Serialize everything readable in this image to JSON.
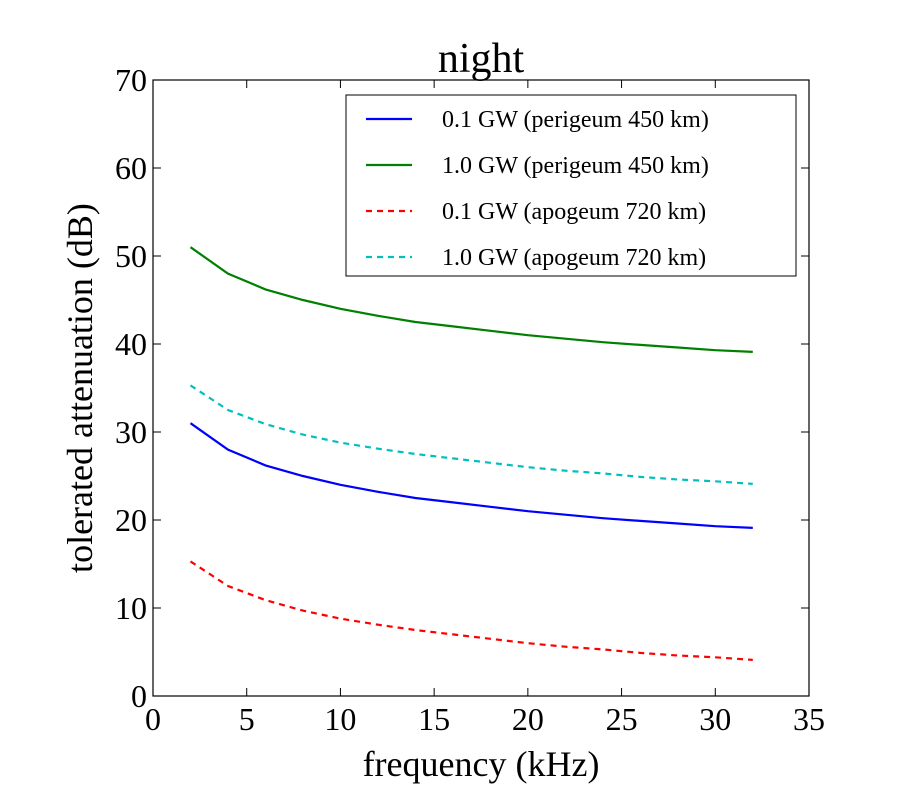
{
  "chart_data": {
    "type": "line",
    "title": "night",
    "xlabel": "frequency (kHz)",
    "ylabel": "tolerated attenuation (dB)",
    "xlim": [
      0,
      35
    ],
    "ylim": [
      0,
      70
    ],
    "xticks": [
      0,
      5,
      10,
      15,
      20,
      25,
      30,
      35
    ],
    "yticks": [
      0,
      10,
      20,
      30,
      40,
      50,
      60,
      70
    ],
    "grid": false,
    "legend_position": "top-right",
    "x": [
      2,
      4,
      6,
      8,
      10,
      12,
      14,
      16,
      18,
      20,
      22,
      24,
      26,
      28,
      30,
      32
    ],
    "series": [
      {
        "name": "0.1 GW (perigeum 450 km)",
        "color": "#0000ff",
        "dash": "solid",
        "values": [
          31.0,
          28.0,
          26.2,
          25.0,
          24.0,
          23.2,
          22.5,
          22.0,
          21.5,
          21.0,
          20.6,
          20.2,
          19.9,
          19.6,
          19.3,
          19.1
        ]
      },
      {
        "name": "1.0 GW (perigeum 450 km)",
        "color": "#008000",
        "dash": "solid",
        "values": [
          51.0,
          48.0,
          46.2,
          45.0,
          44.0,
          43.2,
          42.5,
          42.0,
          41.5,
          41.0,
          40.6,
          40.2,
          39.9,
          39.6,
          39.3,
          39.1
        ]
      },
      {
        "name": "0.1 GW (apogeum 720 km)",
        "color": "#ff0000",
        "dash": "dashed",
        "values": [
          15.3,
          12.5,
          10.9,
          9.7,
          8.8,
          8.1,
          7.5,
          7.0,
          6.5,
          6.0,
          5.6,
          5.3,
          4.9,
          4.6,
          4.4,
          4.1
        ]
      },
      {
        "name": "1.0 GW (apogeum 720 km)",
        "color": "#00bfbf",
        "dash": "dashed",
        "values": [
          35.3,
          32.5,
          30.9,
          29.7,
          28.8,
          28.1,
          27.5,
          27.0,
          26.5,
          26.0,
          25.6,
          25.3,
          24.9,
          24.6,
          24.4,
          24.1
        ]
      }
    ]
  }
}
